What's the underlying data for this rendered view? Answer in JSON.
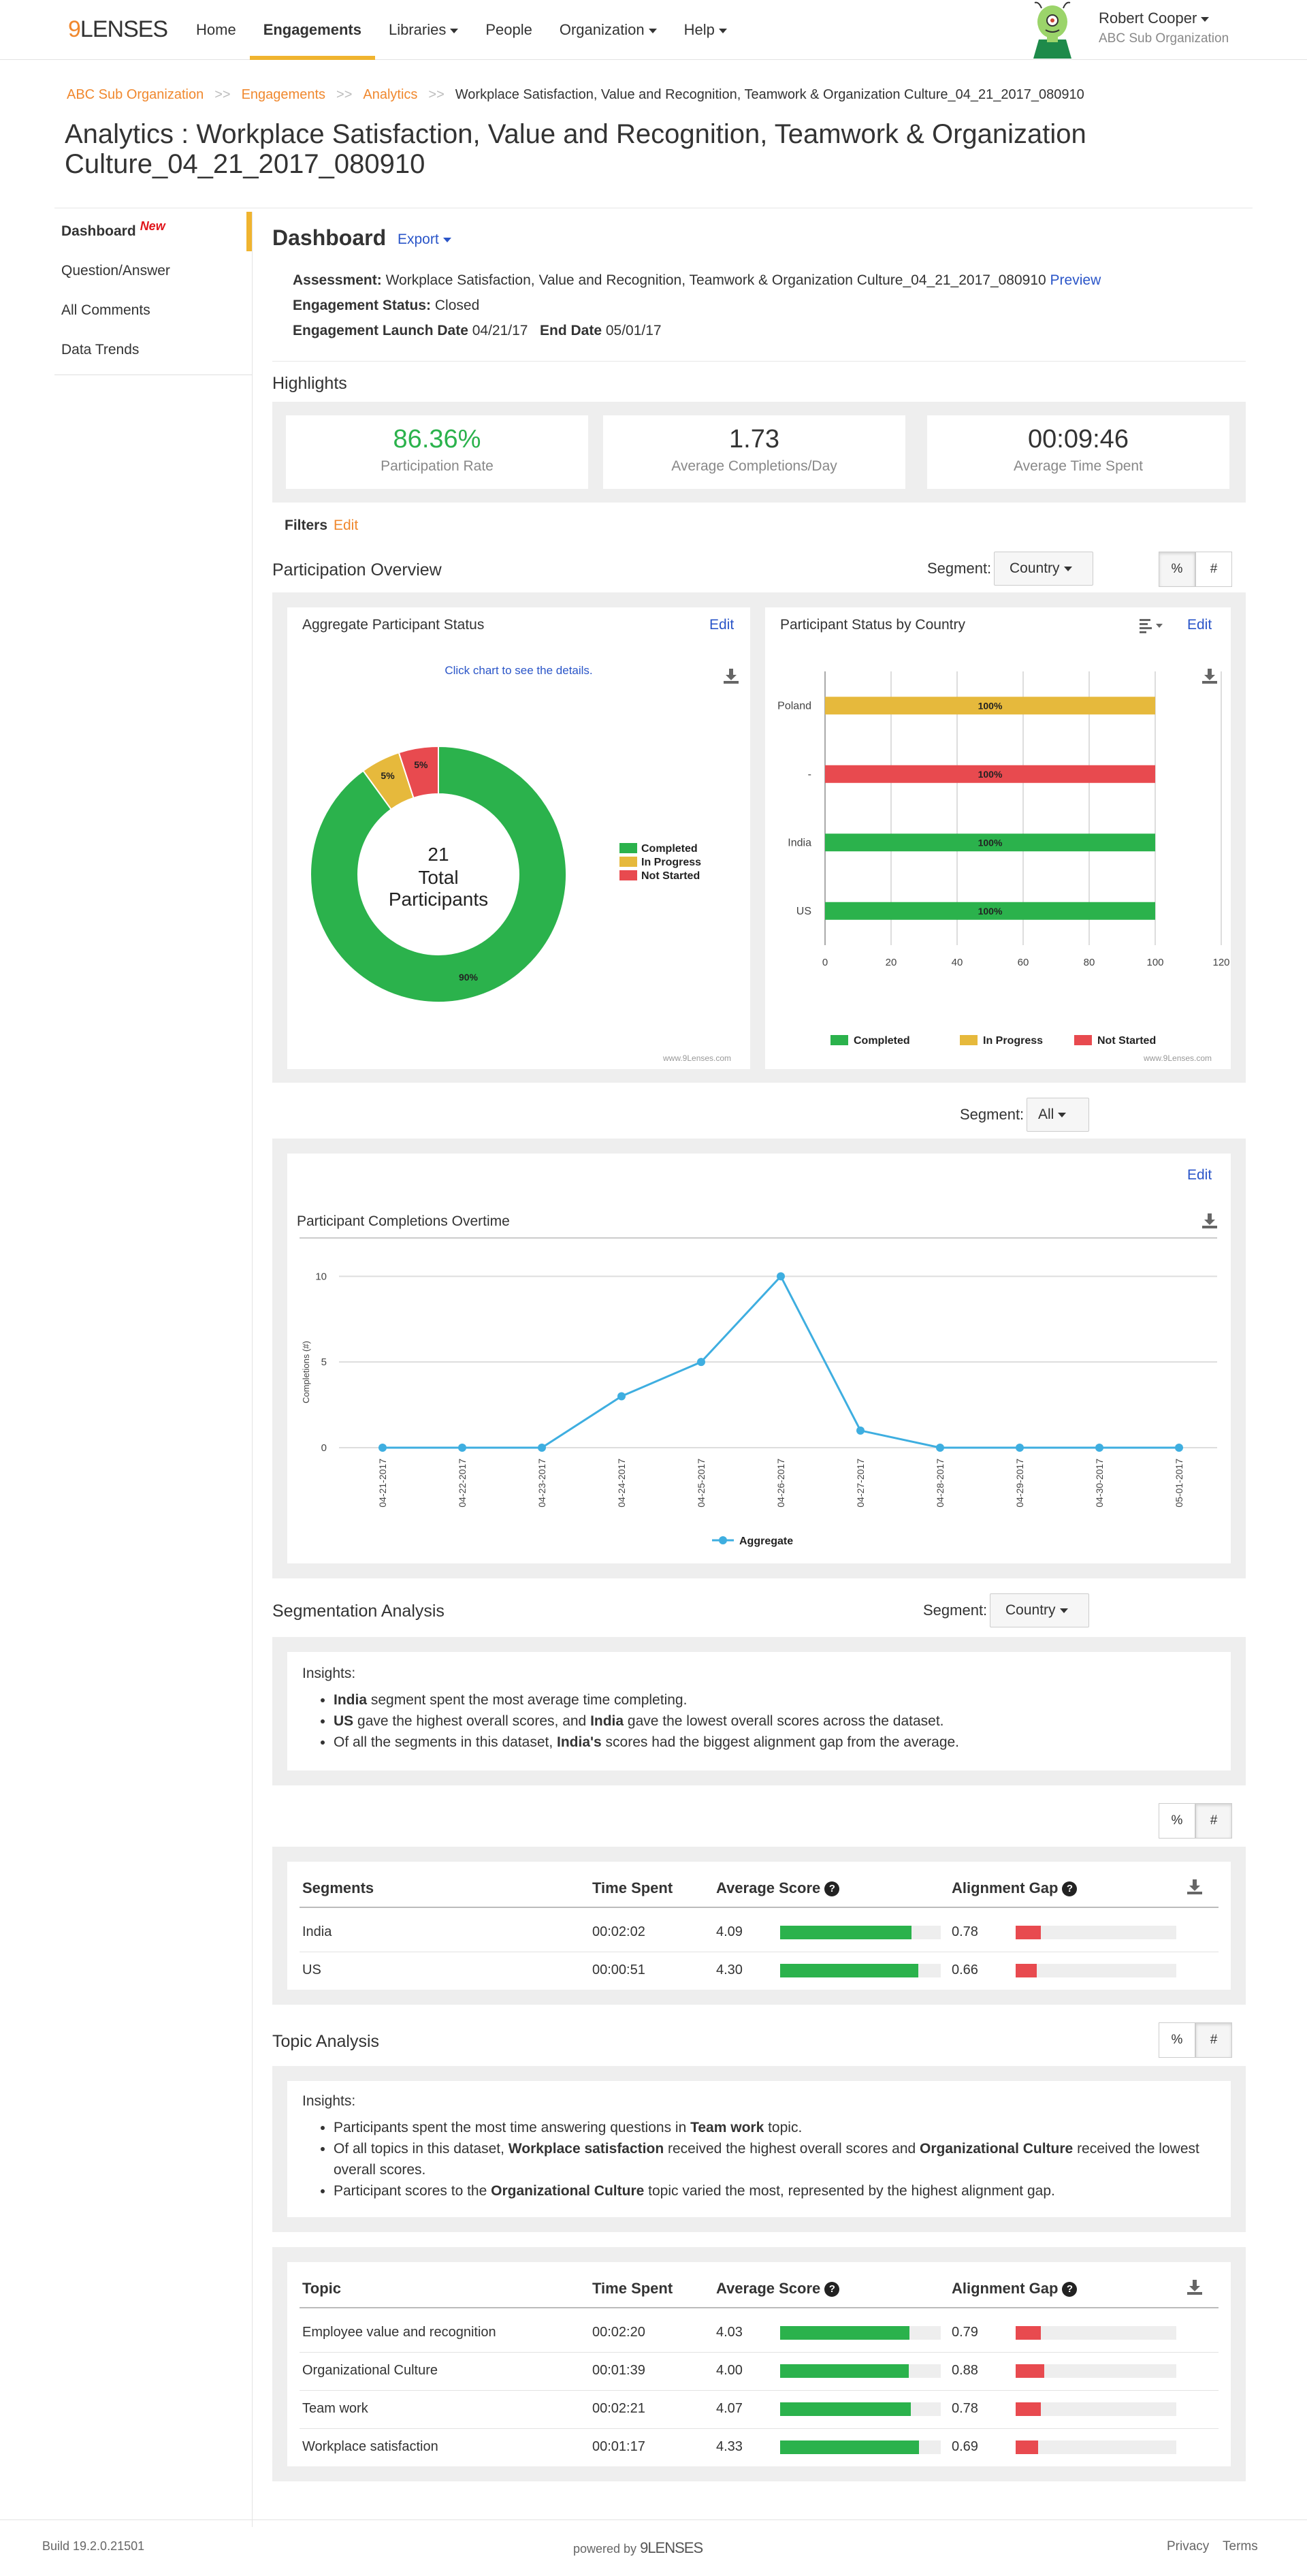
{
  "nav": {
    "logo_prefix": "9",
    "logo_suffix": "LENSES",
    "items": [
      {
        "label": "Home",
        "dropdown": false,
        "active": false
      },
      {
        "label": "Engagements",
        "dropdown": false,
        "active": true
      },
      {
        "label": "Libraries",
        "dropdown": true,
        "active": false
      },
      {
        "label": "People",
        "dropdown": false,
        "active": false
      },
      {
        "label": "Organization",
        "dropdown": true,
        "active": false
      },
      {
        "label": "Help",
        "dropdown": true,
        "active": false
      }
    ],
    "user_name": "Robert Cooper",
    "user_org": "ABC Sub Organization",
    "accent": "#f0b42f"
  },
  "breadcrumb": {
    "items": [
      "ABC Sub Organization",
      "Engagements",
      "Analytics"
    ],
    "separator": ">>",
    "current": "Workplace Satisfaction, Value and Recognition, Teamwork & Organization Culture_04_21_2017_080910"
  },
  "page_title": "Analytics : Workplace Satisfaction, Value and Recognition, Teamwork & Organization Culture_04_21_2017_080910",
  "sidebar": {
    "items": [
      "Dashboard",
      "Question/Answer",
      "All Comments",
      "Data Trends"
    ],
    "new_badge": "New"
  },
  "dashboard": {
    "title": "Dashboard",
    "export_label": "Export",
    "assessment_label": "Assessment:",
    "assessment_value": "Workplace Satisfaction, Value and Recognition, Teamwork & Organization Culture_04_21_2017_080910",
    "preview_label": "Preview",
    "status_label": "Engagement Status:",
    "status_value": "Closed",
    "launch_label": "Engagement Launch Date",
    "launch_value": "04/21/17",
    "end_label": "End Date",
    "end_value": "05/01/17"
  },
  "highlights": {
    "title": "Highlights",
    "cards": [
      {
        "value": "86.36%",
        "label": "Participation Rate",
        "color": "#2bb24c"
      },
      {
        "value": "1.73",
        "label": "Average Completions/Day",
        "color": "#333333"
      },
      {
        "value": "00:09:46",
        "label": "Average Time Spent",
        "color": "#333333"
      }
    ]
  },
  "filters": {
    "label": "Filters",
    "edit": "Edit"
  },
  "participation": {
    "title": "Participation Overview",
    "segment_label": "Segment:",
    "segment_value": "Country",
    "toggle_pct": "%",
    "toggle_num": "#",
    "edit": "Edit",
    "watermark": "www.9Lenses.com"
  },
  "completions_segment": {
    "label": "Segment:",
    "value": "All",
    "edit": "Edit"
  },
  "segmentation": {
    "title": "Segmentation Analysis",
    "segment_label": "Segment:",
    "segment_value": "Country",
    "insights_label": "Insights:",
    "insights": [
      [
        {
          "t": "India",
          "b": true
        },
        {
          "t": " segment spent the most average time completing.",
          "b": false
        }
      ],
      [
        {
          "t": "US",
          "b": true
        },
        {
          "t": " gave the highest overall scores, and ",
          "b": false
        },
        {
          "t": "India",
          "b": true
        },
        {
          "t": " gave the lowest overall scores across the dataset.",
          "b": false
        }
      ],
      [
        {
          "t": "Of all the segments in this dataset, ",
          "b": false
        },
        {
          "t": "India's",
          "b": true
        },
        {
          "t": " scores had the biggest alignment gap from the average.",
          "b": false
        }
      ]
    ],
    "toggle_pct": "%",
    "toggle_num": "#",
    "headers": {
      "name": "Segments",
      "time": "Time Spent",
      "score": "Average Score",
      "gap": "Alignment Gap"
    },
    "rows": [
      {
        "name": "India",
        "time": "00:02:02",
        "score": "4.09",
        "score_val": 4.09,
        "gap": "0.78",
        "gap_val": 0.78
      },
      {
        "name": "US",
        "time": "00:00:51",
        "score": "4.30",
        "score_val": 4.3,
        "gap": "0.66",
        "gap_val": 0.66
      }
    ]
  },
  "topic": {
    "title": "Topic Analysis",
    "toggle_pct": "%",
    "toggle_num": "#",
    "insights_label": "Insights:",
    "insights": [
      [
        {
          "t": "Participants spent the most time answering questions in ",
          "b": false
        },
        {
          "t": "Team work",
          "b": true
        },
        {
          "t": " topic.",
          "b": false
        }
      ],
      [
        {
          "t": "Of all topics in this dataset, ",
          "b": false
        },
        {
          "t": "Workplace satisfaction",
          "b": true
        },
        {
          "t": " received the highest overall scores and ",
          "b": false
        },
        {
          "t": "Organizational Culture",
          "b": true
        },
        {
          "t": " received the lowest overall scores.",
          "b": false
        }
      ],
      [
        {
          "t": "Participant scores to the ",
          "b": false
        },
        {
          "t": "Organizational Culture",
          "b": true
        },
        {
          "t": " topic varied the most, represented by the highest alignment gap.",
          "b": false
        }
      ]
    ],
    "headers": {
      "name": "Topic",
      "time": "Time Spent",
      "score": "Average Score",
      "gap": "Alignment Gap"
    },
    "rows": [
      {
        "name": "Employee value and recognition",
        "time": "00:02:20",
        "score": "4.03",
        "score_val": 4.03,
        "gap": "0.79",
        "gap_val": 0.79
      },
      {
        "name": "Organizational Culture",
        "time": "00:01:39",
        "score": "4.00",
        "score_val": 4.0,
        "gap": "0.88",
        "gap_val": 0.88
      },
      {
        "name": "Team work",
        "time": "00:02:21",
        "score": "4.07",
        "score_val": 4.07,
        "gap": "0.78",
        "gap_val": 0.78
      },
      {
        "name": "Workplace satisfaction",
        "time": "00:01:17",
        "score": "4.33",
        "score_val": 4.33,
        "gap": "0.69",
        "gap_val": 0.69
      }
    ]
  },
  "colors": {
    "completed": "#2bb24c",
    "in_progress": "#e6b93c",
    "not_started": "#e84a4f",
    "line": "#3eaee0",
    "gap": "#e84a4f"
  },
  "footer": {
    "build": "Build 19.2.0.21501",
    "powered": "powered by",
    "powered_brand": "9LENSES",
    "privacy": "Privacy",
    "terms": "Terms"
  },
  "chart_data": [
    {
      "type": "pie",
      "title": "Aggregate Participant Status",
      "subtitle": "Click chart to see the details.",
      "center_value": "21",
      "center_label": "Total Participants",
      "labels": [
        "Completed",
        "In Progress",
        "Not Started"
      ],
      "values": [
        90,
        5,
        5
      ],
      "value_labels": [
        "90%",
        "5%",
        "5%"
      ],
      "legend": "right"
    },
    {
      "type": "bar",
      "orientation": "horizontal",
      "stacked": true,
      "title": "Participant Status by Country",
      "categories": [
        "Poland",
        "-",
        "India",
        "US"
      ],
      "series": [
        {
          "name": "Completed",
          "values": [
            0,
            0,
            100,
            100
          ]
        },
        {
          "name": "In Progress",
          "values": [
            100,
            0,
            0,
            0
          ]
        },
        {
          "name": "Not Started",
          "values": [
            0,
            100,
            0,
            0
          ]
        }
      ],
      "bar_labels": [
        "100%",
        "100%",
        "100%",
        "100%"
      ],
      "xlim": [
        0,
        120
      ],
      "xticks": [
        0,
        20,
        40,
        60,
        80,
        100,
        120
      ],
      "legend": "bottom"
    },
    {
      "type": "line",
      "title": "Participant Completions Overtime",
      "ylabel": "Completions (#)",
      "x": [
        "04-21-2017",
        "04-22-2017",
        "04-23-2017",
        "04-24-2017",
        "04-25-2017",
        "04-26-2017",
        "04-27-2017",
        "04-28-2017",
        "04-29-2017",
        "04-30-2017",
        "05-01-2017"
      ],
      "series": [
        {
          "name": "Aggregate",
          "values": [
            0,
            0,
            0,
            3,
            5,
            10,
            1,
            0,
            0,
            0,
            0
          ]
        }
      ],
      "ylim": [
        0,
        12
      ],
      "yticks": [
        0,
        5,
        10
      ],
      "legend": "bottom"
    }
  ]
}
